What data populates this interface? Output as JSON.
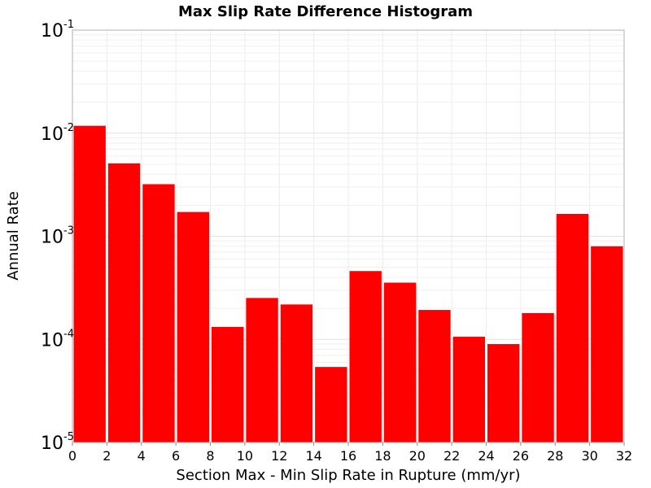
{
  "chart_data": {
    "type": "bar",
    "title": "Max Slip Rate Difference Histogram",
    "xlabel": "Section Max - Min Slip Rate in Rupture (mm/yr)",
    "ylabel": "Annual Rate",
    "xlim": [
      0,
      32
    ],
    "ylim": [
      1e-05,
      0.1
    ],
    "y_scale": "log",
    "grid": true,
    "bar_color": "#ff0000",
    "bin_width": 2,
    "x": [
      1,
      3,
      5,
      7,
      9,
      11,
      13,
      15,
      17,
      19,
      21,
      23,
      25,
      27,
      29,
      31
    ],
    "values": [
      0.0118,
      0.0051,
      0.0032,
      0.00172,
      0.000132,
      0.000252,
      0.000218,
      5.4e-05,
      0.00046,
      0.000355,
      0.000193,
      0.000106,
      9e-05,
      0.00018,
      0.00165,
      0.0008
    ],
    "x_ticks": [
      "0",
      "2",
      "4",
      "6",
      "8",
      "10",
      "12",
      "14",
      "16",
      "18",
      "20",
      "22",
      "24",
      "26",
      "28",
      "30",
      "32"
    ],
    "y_ticks": [
      {
        "base": "10",
        "exp": "-5",
        "value": 1e-05
      },
      {
        "base": "10",
        "exp": "-4",
        "value": 0.0001
      },
      {
        "base": "10",
        "exp": "-3",
        "value": 0.001
      },
      {
        "base": "10",
        "exp": "-2",
        "value": 0.01
      },
      {
        "base": "10",
        "exp": "-1",
        "value": 0.1
      }
    ]
  }
}
